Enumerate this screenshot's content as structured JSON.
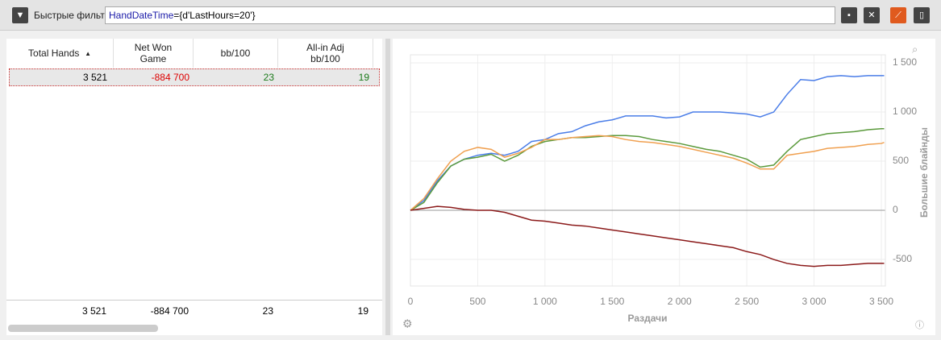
{
  "filter_bar": {
    "label": "Быстрые фильт",
    "query_key": "HandDateTime",
    "query_rest": "={d'LastHours=20'}"
  },
  "table": {
    "headers": [
      "Total Hands",
      "Net Won Game",
      "bb/100",
      "All-in Adj bb/100"
    ],
    "rows": [
      [
        "3 521",
        "-884 700",
        "23",
        "19"
      ]
    ],
    "totals": [
      "3 521",
      "-884 700",
      "23",
      "19"
    ]
  },
  "chart_data": {
    "type": "line",
    "xlabel": "Раздачи",
    "ylabel": "Большие блайнды",
    "x": [
      0,
      100,
      200,
      300,
      400,
      500,
      600,
      700,
      800,
      900,
      1000,
      1100,
      1200,
      1300,
      1400,
      1500,
      1600,
      1700,
      1800,
      1900,
      2000,
      2100,
      2200,
      2300,
      2400,
      2500,
      2600,
      2700,
      2800,
      2900,
      3000,
      3100,
      3200,
      3300,
      3400,
      3500,
      3521
    ],
    "series": [
      {
        "color": "#4a7de8",
        "values": [
          0,
          100,
          300,
          450,
          520,
          560,
          580,
          560,
          600,
          700,
          720,
          780,
          800,
          860,
          900,
          920,
          960,
          960,
          960,
          940,
          950,
          1000,
          1000,
          1000,
          990,
          980,
          950,
          1000,
          1180,
          1330,
          1320,
          1360,
          1370,
          1360,
          1370,
          1370,
          1370
        ]
      },
      {
        "color": "#5b9a3c",
        "values": [
          0,
          80,
          280,
          450,
          520,
          540,
          570,
          500,
          560,
          650,
          700,
          720,
          740,
          740,
          750,
          760,
          760,
          750,
          720,
          700,
          680,
          650,
          620,
          600,
          560,
          520,
          440,
          460,
          600,
          720,
          750,
          780,
          790,
          800,
          820,
          830,
          830
        ]
      },
      {
        "color": "#f0a050",
        "values": [
          0,
          120,
          320,
          500,
          600,
          640,
          620,
          540,
          580,
          640,
          720,
          720,
          740,
          750,
          760,
          750,
          720,
          700,
          690,
          670,
          650,
          620,
          590,
          560,
          530,
          480,
          420,
          420,
          560,
          580,
          600,
          630,
          640,
          650,
          670,
          680,
          690
        ]
      },
      {
        "color": "#8b1a1a",
        "values": [
          0,
          20,
          40,
          30,
          10,
          0,
          0,
          -20,
          -60,
          -100,
          -110,
          -130,
          -150,
          -160,
          -180,
          -200,
          -220,
          -240,
          -260,
          -280,
          -300,
          -320,
          -340,
          -360,
          -380,
          -420,
          -450,
          -500,
          -540,
          -560,
          -570,
          -560,
          -560,
          -550,
          -540,
          -540,
          -540
        ]
      }
    ],
    "xlim": [
      0,
      3530
    ],
    "xticks": [
      0,
      500,
      {
        "value": 1000,
        "label": "1 000"
      },
      {
        "value": 1500,
        "label": "1 500"
      },
      {
        "value": 2000,
        "label": "2 000"
      },
      {
        "value": 2500,
        "label": "2 500"
      },
      {
        "value": 3000,
        "label": "3 000"
      },
      {
        "value": 3500,
        "label": "3 500"
      }
    ],
    "ylim": [
      -770,
      1582
    ],
    "yticks": [
      -500,
      0,
      500,
      {
        "value": 1000,
        "label": "1 000"
      },
      {
        "value": 1500,
        "label": "1 500"
      }
    ],
    "grid": true
  }
}
